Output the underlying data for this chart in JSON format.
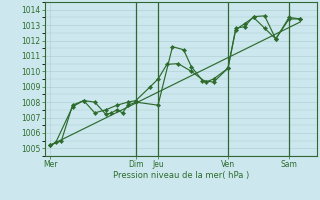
{
  "bg_color": "#cce8ee",
  "grid_color": "#aacccc",
  "line_color": "#2d6b2d",
  "marker_color": "#2d6b2d",
  "xlabel": "Pression niveau de la mer( hPa )",
  "ylim": [
    1004.5,
    1014.5
  ],
  "yticks": [
    1005,
    1006,
    1007,
    1008,
    1009,
    1010,
    1011,
    1012,
    1013,
    1014
  ],
  "day_labels": [
    "Mer",
    "Dim",
    "Jeu",
    "Ven",
    "Sam"
  ],
  "day_positions": [
    0.5,
    8.2,
    10.2,
    16.5,
    22.0
  ],
  "xmin": 0,
  "xmax": 24.5,
  "series1_x": [
    0.5,
    1.0,
    2.5,
    3.5,
    4.5,
    5.5,
    6.0,
    6.5,
    7.0,
    7.5,
    8.2,
    10.2,
    11.5,
    12.5,
    13.2,
    14.2,
    15.2,
    16.5,
    17.2,
    18.0,
    18.8,
    19.8,
    20.8,
    22.0,
    23.0
  ],
  "series1_y": [
    1005.2,
    1005.4,
    1007.7,
    1008.1,
    1008.0,
    1007.2,
    1007.3,
    1007.5,
    1007.3,
    1007.8,
    1008.0,
    1007.8,
    1011.6,
    1011.4,
    1010.3,
    1009.4,
    1009.3,
    1010.2,
    1012.8,
    1012.9,
    1013.55,
    1013.6,
    1012.1,
    1013.5,
    1013.4
  ],
  "series2_x": [
    0.5,
    1.5,
    2.5,
    3.5,
    4.5,
    5.5,
    6.5,
    7.5,
    8.2,
    9.5,
    10.2,
    11.0,
    12.0,
    13.2,
    14.5,
    15.2,
    16.5,
    17.2,
    18.0,
    18.8,
    19.8,
    20.8,
    22.0,
    23.0
  ],
  "series2_y": [
    1005.2,
    1005.5,
    1007.8,
    1008.1,
    1007.3,
    1007.5,
    1007.8,
    1008.0,
    1008.1,
    1009.0,
    1009.5,
    1010.45,
    1010.5,
    1010.0,
    1009.3,
    1009.5,
    1010.2,
    1012.7,
    1013.1,
    1013.5,
    1012.8,
    1012.1,
    1013.4,
    1013.4
  ],
  "trend_x": [
    0.5,
    23.0
  ],
  "trend_y": [
    1005.2,
    1013.2
  ],
  "vline_positions": [
    8.2,
    10.2,
    16.5,
    22.0
  ],
  "spine_color": "#336633"
}
